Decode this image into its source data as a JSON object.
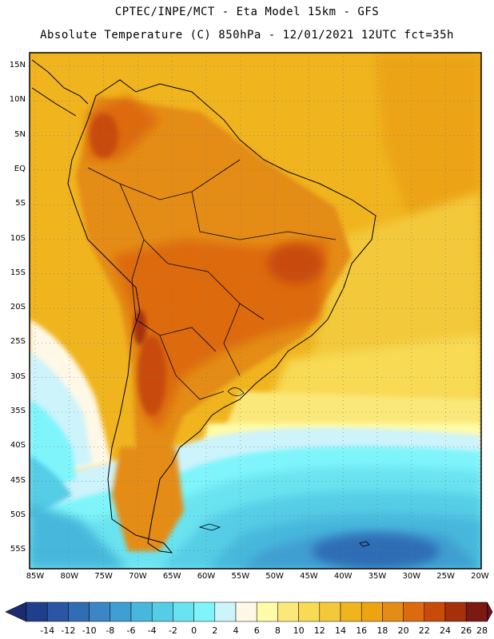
{
  "header": {
    "line1": "CPTEC/INPE/MCT -  Eta Model 15km - GFS",
    "line2": "Absolute Temperature (C) 850hPa - 12/01/2021 12UTC fct=35h"
  },
  "axes": {
    "lat_labels": [
      "15N",
      "10N",
      "5N",
      "EQ",
      "5S",
      "10S",
      "15S",
      "20S",
      "25S",
      "30S",
      "35S",
      "40S",
      "45S",
      "50S",
      "55S"
    ],
    "lon_labels": [
      "85W",
      "80W",
      "75W",
      "70W",
      "65W",
      "60W",
      "55W",
      "50W",
      "45W",
      "40W",
      "35W",
      "30W",
      "25W",
      "20W"
    ]
  },
  "colorbar": {
    "labels": [
      "-14",
      "-12",
      "-10",
      "-8",
      "-6",
      "-4",
      "-2",
      "0",
      "2",
      "4",
      "6",
      "8",
      "10",
      "12",
      "14",
      "16",
      "18",
      "20",
      "22",
      "24",
      "26",
      "28"
    ],
    "colors": [
      "#1f3f8e",
      "#2a56a3",
      "#2f6db5",
      "#3b86c4",
      "#3f9fd2",
      "#47b8dc",
      "#55cde6",
      "#6ae3f0",
      "#7ff5fb",
      "#cdf3fb",
      "#fff8e6",
      "#fffba8",
      "#fbe87a",
      "#f8da55",
      "#f3c93a",
      "#f0b41e",
      "#eca413",
      "#e48c15",
      "#dd6a0f",
      "#c84b0a",
      "#a6300a",
      "#7a1a10"
    ],
    "under_color": "#1a2b70",
    "over_color": "#6e0d20"
  },
  "map": {
    "field": "Absolute Temperature (C) 850hPa",
    "warm_regions": [
      "Andes foothills",
      "Central Brazil",
      "Northern Argentina",
      "Colombia/Venezuela"
    ],
    "cold_regions": [
      "South Atlantic",
      "Southern Pacific",
      "Patagonia coast"
    ]
  }
}
